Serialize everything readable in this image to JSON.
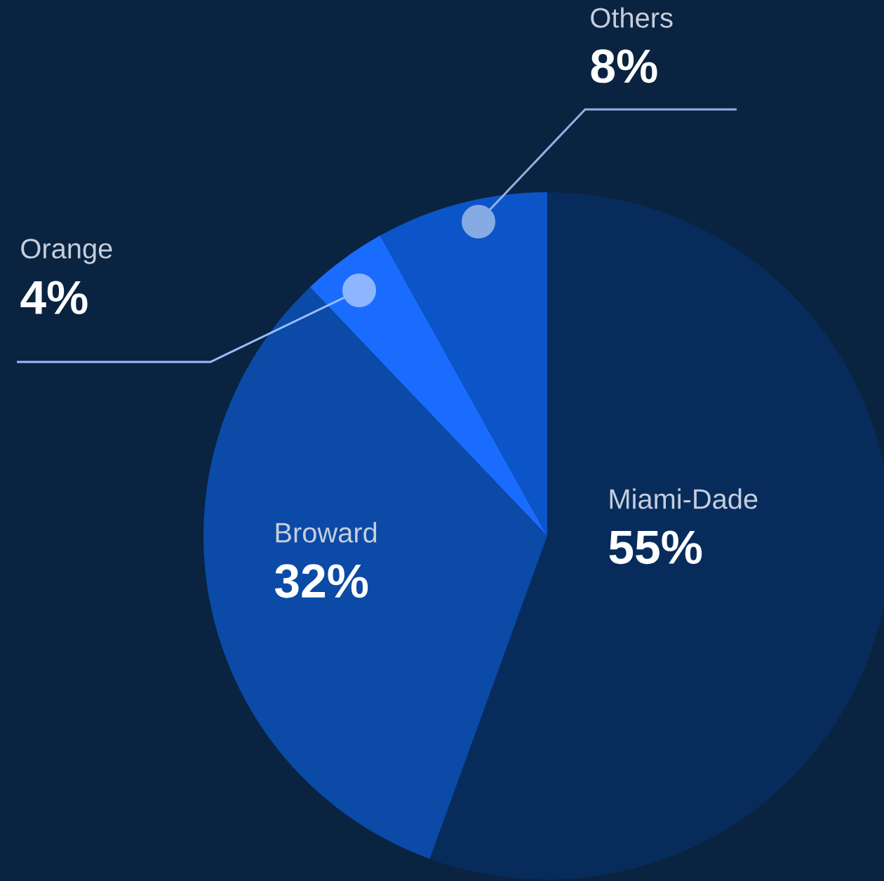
{
  "chart_data": {
    "type": "pie",
    "categories": [
      "Miami-Dade",
      "Broward",
      "Orange",
      "Others"
    ],
    "values": [
      55,
      32,
      4,
      8
    ],
    "value_labels": [
      "55%",
      "32%",
      "4%",
      "8%"
    ],
    "colors": [
      "#072c5c",
      "#0b4aa6",
      "#1a6cff",
      "#0c55c8"
    ]
  }
}
